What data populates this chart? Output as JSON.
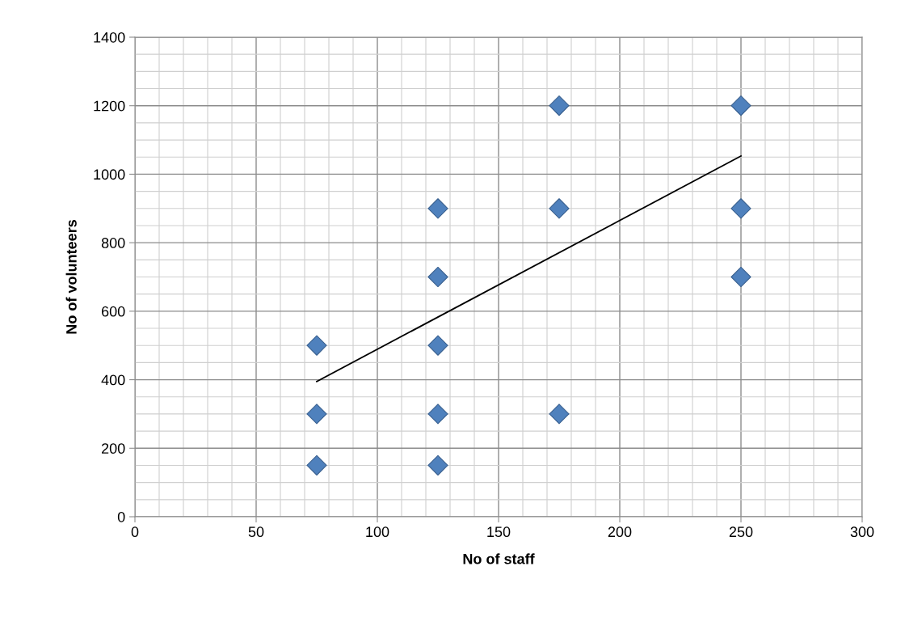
{
  "chart_data": {
    "type": "scatter",
    "xlabel": "No of staff",
    "ylabel": "No of volunteers",
    "xlim": [
      0,
      300
    ],
    "xticks": [
      0,
      50,
      100,
      150,
      200,
      250,
      300
    ],
    "ylim": [
      0,
      1400
    ],
    "yticks": [
      0,
      200,
      400,
      600,
      800,
      1000,
      1200,
      1400
    ],
    "grid": true,
    "legend": false,
    "series": [
      {
        "marker": "diamond",
        "color": "#4f81bd",
        "x": [
          75,
          75,
          75,
          125,
          125,
          125,
          125,
          125,
          175,
          175,
          175,
          250,
          250,
          250
        ],
        "values": [
          150,
          300,
          500,
          150,
          300,
          500,
          700,
          900,
          300,
          900,
          1200,
          700,
          900,
          1200
        ]
      },
      {
        "type": "line",
        "marker": "none",
        "line_style": "solid",
        "color": "#000000",
        "x": [
          75,
          250
        ],
        "values": [
          395,
          1053
        ]
      }
    ]
  }
}
